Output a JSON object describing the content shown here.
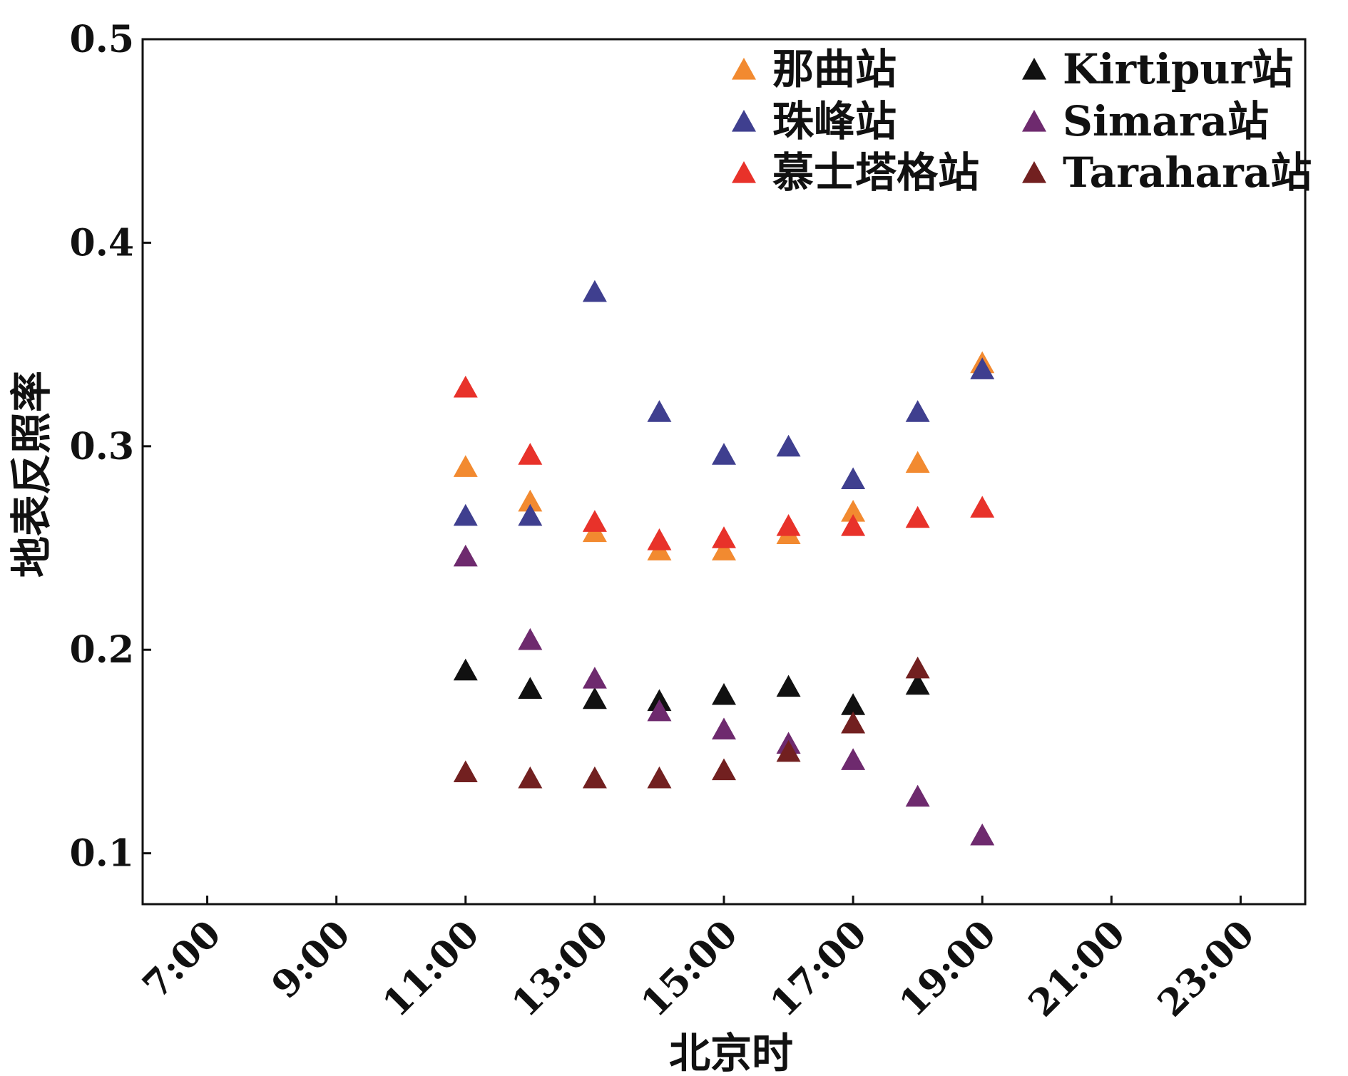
{
  "chart_data": {
    "type": "scatter",
    "title": "",
    "xlabel": "北京时",
    "ylabel": "地表反照率",
    "xlim": [
      6,
      24
    ],
    "ylim": [
      0.075,
      0.5
    ],
    "x_ticks": [
      7,
      9,
      11,
      13,
      15,
      17,
      19,
      21,
      23
    ],
    "x_tick_labels": [
      "7:00",
      "9:00",
      "11:00",
      "13:00",
      "15:00",
      "17:00",
      "19:00",
      "21:00",
      "23:00"
    ],
    "y_ticks": [
      0.1,
      0.2,
      0.3,
      0.4,
      0.5
    ],
    "y_tick_labels": [
      "0.1",
      "0.2",
      "0.3",
      "0.4",
      "0.5"
    ],
    "grid": false,
    "legend_position": "top-right",
    "marker": "triangle",
    "series": [
      {
        "name": "那曲站",
        "color": "#F28A30",
        "x": [
          11,
          12,
          13,
          14,
          15,
          16,
          17,
          18,
          19
        ],
        "y": [
          0.289,
          0.272,
          0.257,
          0.248,
          0.248,
          0.256,
          0.267,
          0.291,
          0.34
        ]
      },
      {
        "name": "珠峰站",
        "color": "#3F3F8F",
        "x": [
          11,
          12,
          13,
          14,
          15,
          16,
          17,
          18,
          19
        ],
        "y": [
          0.265,
          0.265,
          0.375,
          0.316,
          0.295,
          0.299,
          0.283,
          0.316,
          0.337
        ]
      },
      {
        "name": "慕士塔格站",
        "color": "#E8322A",
        "x": [
          11,
          12,
          13,
          14,
          15,
          16,
          17,
          18,
          19
        ],
        "y": [
          0.328,
          0.295,
          0.262,
          0.253,
          0.254,
          0.26,
          0.26,
          0.264,
          0.269
        ]
      },
      {
        "name": "Kirtipur站",
        "color": "#111111",
        "x": [
          11,
          12,
          13,
          14,
          15,
          16,
          17,
          18
        ],
        "y": [
          0.189,
          0.18,
          0.175,
          0.174,
          0.177,
          0.181,
          0.172,
          0.182
        ]
      },
      {
        "name": "Simara站",
        "color": "#6E2A6E",
        "x": [
          11,
          12,
          13,
          14,
          15,
          16,
          17,
          18,
          19
        ],
        "y": [
          0.245,
          0.204,
          0.185,
          0.169,
          0.16,
          0.153,
          0.145,
          0.127,
          0.108
        ]
      },
      {
        "name": "Tarahara站",
        "color": "#722020",
        "x": [
          11,
          12,
          13,
          14,
          15,
          16,
          17,
          18
        ],
        "y": [
          0.139,
          0.136,
          0.136,
          0.136,
          0.14,
          0.149,
          0.163,
          0.19
        ]
      }
    ]
  }
}
